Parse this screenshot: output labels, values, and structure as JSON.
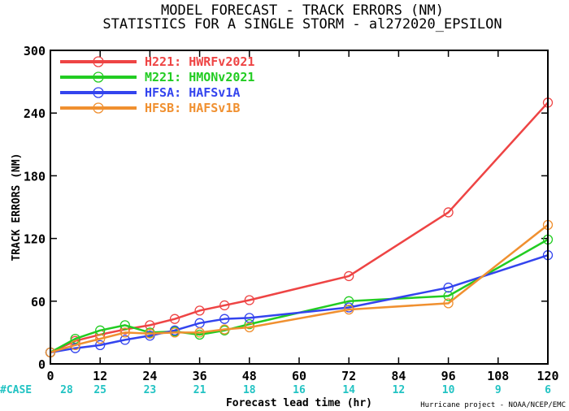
{
  "title_line1": "MODEL FORECAST - TRACK ERRORS (NM)",
  "title_line2": "STATISTICS FOR A SINGLE STORM - al272020_EPSILON",
  "ylabel": "TRACK ERRORS (NM)",
  "xlabel": "Forecast lead time (hr)",
  "credit": "Hurricane project - NOAA/NCEP/EMC",
  "case_label": "#CASE",
  "cases": [
    {
      "hour": 0,
      "count": "28"
    },
    {
      "hour": 12,
      "count": "25"
    },
    {
      "hour": 24,
      "count": "23"
    },
    {
      "hour": 36,
      "count": "21"
    },
    {
      "hour": 48,
      "count": "18"
    },
    {
      "hour": 60,
      "count": "16"
    },
    {
      "hour": 72,
      "count": "14"
    },
    {
      "hour": 84,
      "count": "12"
    },
    {
      "hour": 96,
      "count": "10"
    },
    {
      "hour": 108,
      "count": "9"
    },
    {
      "hour": 120,
      "count": "6"
    }
  ],
  "chart_data": {
    "type": "line",
    "xlim": [
      0,
      120
    ],
    "ylim": [
      0,
      300
    ],
    "xticks": [
      "0",
      "12",
      "24",
      "36",
      "48",
      "60",
      "72",
      "84",
      "96",
      "108",
      "120"
    ],
    "yticks": [
      "0",
      "60",
      "120",
      "180",
      "240",
      "300"
    ],
    "grid": false,
    "legend_position": "top-left",
    "series": [
      {
        "name": "H221:",
        "desc": "HWRFv2021",
        "color": "#ee4444",
        "x": [
          0,
          6,
          12,
          18,
          24,
          30,
          36,
          42,
          48,
          72,
          96,
          120
        ],
        "y": [
          11,
          22,
          28,
          33,
          37,
          43,
          51,
          56,
          61,
          84,
          145,
          250
        ]
      },
      {
        "name": "M221:",
        "desc": "HMONv2021",
        "color": "#22cc22",
        "x": [
          0,
          6,
          12,
          18,
          24,
          30,
          36,
          42,
          48,
          72,
          96,
          120
        ],
        "y": [
          11,
          24,
          32,
          37,
          30,
          31,
          28,
          32,
          38,
          60,
          65,
          119
        ]
      },
      {
        "name": "HFSA:",
        "desc": "HAFSv1A",
        "color": "#3344ee",
        "x": [
          0,
          6,
          12,
          18,
          24,
          30,
          36,
          42,
          48,
          72,
          96,
          120
        ],
        "y": [
          11,
          15,
          18,
          23,
          27,
          32,
          39,
          43,
          44,
          54,
          73,
          104
        ]
      },
      {
        "name": "HFSB:",
        "desc": "HAFSv1B",
        "color": "#f09030",
        "x": [
          0,
          6,
          12,
          18,
          24,
          30,
          36,
          42,
          48,
          72,
          96,
          120
        ],
        "y": [
          11,
          18,
          24,
          30,
          29,
          30,
          30,
          33,
          35,
          52,
          58,
          133
        ]
      }
    ]
  }
}
